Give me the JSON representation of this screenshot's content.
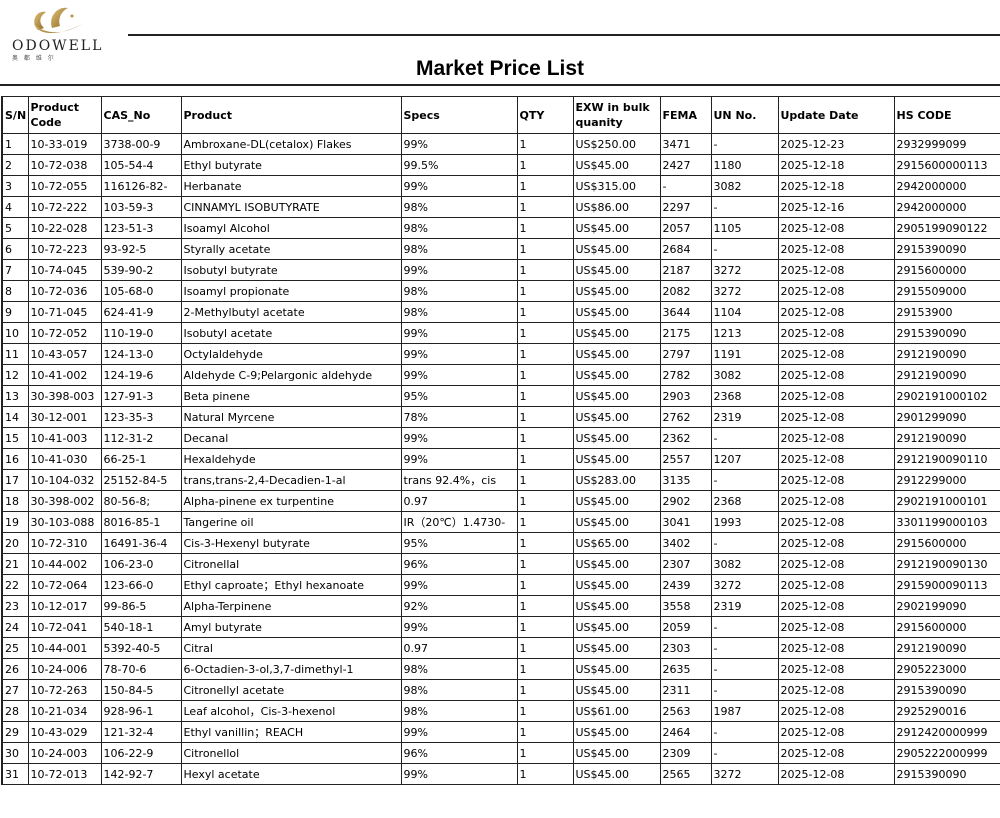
{
  "logo": {
    "brand": "ODOWELL",
    "subtitle": "奥 都 维 尔",
    "accent": "#b8913a"
  },
  "title": "Market Price List",
  "table": {
    "headers": [
      "S/N",
      "Product Code",
      "CAS_No",
      "Product",
      "Specs",
      "QTY",
      "EXW in bulk quanity",
      "FEMA",
      "UN No.",
      "Update Date",
      "HS CODE"
    ],
    "rows": [
      [
        "1",
        "10-33-019",
        "3738-00-9",
        "Ambroxane-DL(cetalox) Flakes",
        "99%",
        "1",
        "US$250.00",
        "3471",
        "-",
        "2025-12-23",
        "2932999099"
      ],
      [
        "2",
        "10-72-038",
        "105-54-4",
        "Ethyl butyrate",
        "99.5%",
        "1",
        "US$45.00",
        "2427",
        "1180",
        "2025-12-18",
        "2915600000113"
      ],
      [
        "3",
        "10-72-055",
        "116126-82-",
        "Herbanate",
        "99%",
        "1",
        "US$315.00",
        "-",
        "3082",
        "2025-12-18",
        "2942000000"
      ],
      [
        "4",
        "10-72-222",
        "103-59-3",
        "CINNAMYL ISOBUTYRATE",
        "98%",
        "1",
        "US$86.00",
        "2297",
        "-",
        "2025-12-16",
        "2942000000"
      ],
      [
        "5",
        "10-22-028",
        "123-51-3",
        "Isoamyl Alcohol",
        "98%",
        "1",
        "US$45.00",
        "2057",
        "1105",
        "2025-12-08",
        "2905199090122"
      ],
      [
        "6",
        "10-72-223",
        "93-92-5",
        "Styrally acetate",
        "98%",
        "1",
        "US$45.00",
        "2684",
        "-",
        "2025-12-08",
        "2915390090"
      ],
      [
        "7",
        "10-74-045",
        "539-90-2",
        "Isobutyl butyrate",
        "99%",
        "1",
        "US$45.00",
        "2187",
        "3272",
        "2025-12-08",
        "2915600000"
      ],
      [
        "8",
        "10-72-036",
        "105-68-0",
        "Isoamyl propionate",
        "98%",
        "1",
        "US$45.00",
        "2082",
        "3272",
        "2025-12-08",
        "2915509000"
      ],
      [
        "9",
        "10-71-045",
        "624-41-9",
        "2-Methylbutyl acetate",
        "98%",
        "1",
        "US$45.00",
        "3644",
        "1104",
        "2025-12-08",
        "29153900"
      ],
      [
        "10",
        "10-72-052",
        "110-19-0",
        "Isobutyl acetate",
        "99%",
        "1",
        "US$45.00",
        "2175",
        "1213",
        "2025-12-08",
        "2915390090"
      ],
      [
        "11",
        "10-43-057",
        "124-13-0",
        "Octylaldehyde",
        "99%",
        "1",
        "US$45.00",
        "2797",
        "1191",
        "2025-12-08",
        "2912190090"
      ],
      [
        "12",
        "10-41-002",
        "124-19-6",
        "Aldehyde C-9;Pelargonic aldehyde",
        "99%",
        "1",
        "US$45.00",
        "2782",
        "3082",
        "2025-12-08",
        "2912190090"
      ],
      [
        "13",
        "30-398-003",
        "127-91-3",
        "Beta pinene",
        "95%",
        "1",
        "US$45.00",
        "2903",
        "2368",
        "2025-12-08",
        "2902191000102"
      ],
      [
        "14",
        "30-12-001",
        "123-35-3",
        "Natural Myrcene",
        "78%",
        "1",
        "US$45.00",
        "2762",
        "2319",
        "2025-12-08",
        "2901299090"
      ],
      [
        "15",
        "10-41-003",
        "112-31-2",
        "Decanal",
        "99%",
        "1",
        "US$45.00",
        "2362",
        "-",
        "2025-12-08",
        "2912190090"
      ],
      [
        "16",
        "10-41-030",
        "66-25-1",
        "Hexaldehyde",
        "99%",
        "1",
        "US$45.00",
        "2557",
        "1207",
        "2025-12-08",
        "2912190090110"
      ],
      [
        "17",
        "10-104-032",
        "25152-84-5",
        "trans,trans-2,4-Decadien-1-al",
        "trans 92.4%，cis",
        "1",
        "US$283.00",
        "3135",
        "-",
        "2025-12-08",
        "2912299000"
      ],
      [
        "18",
        "30-398-002",
        "80-56-8;",
        "Alpha-pinene ex turpentine",
        "0.97",
        "1",
        "US$45.00",
        "2902",
        "2368",
        "2025-12-08",
        "2902191000101"
      ],
      [
        "19",
        "30-103-088",
        "8016-85-1",
        "Tangerine oil",
        "IR（20℃）1.4730-",
        "1",
        "US$45.00",
        "3041",
        "1993",
        "2025-12-08",
        "3301199000103"
      ],
      [
        "20",
        "10-72-310",
        "16491-36-4",
        "Cis-3-Hexenyl butyrate",
        "95%",
        "1",
        "US$65.00",
        "3402",
        "-",
        "2025-12-08",
        "2915600000"
      ],
      [
        "21",
        "10-44-002",
        "106-23-0",
        "Citronellal",
        "96%",
        "1",
        "US$45.00",
        "2307",
        "3082",
        "2025-12-08",
        "2912190090130"
      ],
      [
        "22",
        "10-72-064",
        "123-66-0",
        "Ethyl caproate；Ethyl hexanoate",
        "99%",
        "1",
        "US$45.00",
        "2439",
        "3272",
        "2025-12-08",
        "2915900090113"
      ],
      [
        "23",
        "10-12-017",
        "99-86-5",
        "Alpha-Terpinene",
        "92%",
        "1",
        "US$45.00",
        "3558",
        "2319",
        "2025-12-08",
        "2902199090"
      ],
      [
        "24",
        "10-72-041",
        "540-18-1",
        "Amyl butyrate",
        "99%",
        "1",
        "US$45.00",
        "2059",
        "-",
        "2025-12-08",
        "2915600000"
      ],
      [
        "25",
        "10-44-001",
        "5392-40-5",
        "Citral",
        "0.97",
        "1",
        "US$45.00",
        "2303",
        "-",
        "2025-12-08",
        "2912190090"
      ],
      [
        "26",
        "10-24-006",
        "78-70-6",
        "6-Octadien-3-ol,3,7-dimethyl-1",
        "98%",
        "1",
        "US$45.00",
        "2635",
        "-",
        "2025-12-08",
        "2905223000"
      ],
      [
        "27",
        "10-72-263",
        "150-84-5",
        "Citronellyl acetate",
        "98%",
        "1",
        "US$45.00",
        "2311",
        "-",
        "2025-12-08",
        "2915390090"
      ],
      [
        "28",
        "10-21-034",
        "928-96-1",
        "Leaf alcohol，Cis-3-hexenol",
        "98%",
        "1",
        "US$61.00",
        "2563",
        "1987",
        "2025-12-08",
        "2925290016"
      ],
      [
        "29",
        "10-43-029",
        "121-32-4",
        "Ethyl vanillin；REACH",
        "99%",
        "1",
        "US$45.00",
        "2464",
        "-",
        "2025-12-08",
        "2912420000999"
      ],
      [
        "30",
        "10-24-003",
        "106-22-9",
        "Citronellol",
        "96%",
        "1",
        "US$45.00",
        "2309",
        "-",
        "2025-12-08",
        "2905222000999"
      ],
      [
        "31",
        "10-72-013",
        "142-92-7",
        "Hexyl acetate",
        "99%",
        "1",
        "US$45.00",
        "2565",
        "3272",
        "2025-12-08",
        "2915390090"
      ]
    ]
  }
}
